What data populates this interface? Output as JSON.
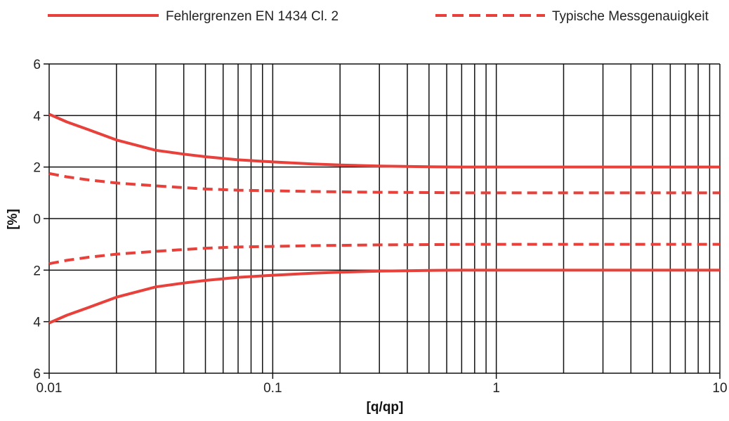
{
  "chart_data": {
    "type": "line",
    "x_scale": "log",
    "xlim": [
      0.01,
      10
    ],
    "ylim": [
      -6,
      6
    ],
    "xlabel": "[q/qp]",
    "ylabel": "[%]",
    "x_ticks": [
      0.01,
      0.1,
      1,
      10
    ],
    "x_tick_labels": [
      "0.01",
      "0.1",
      "1",
      "10"
    ],
    "y_ticks": [
      6,
      4,
      2,
      0,
      -2,
      -4,
      -6
    ],
    "y_tick_labels": [
      "6",
      "4",
      "2",
      "0",
      "2",
      "4",
      "6"
    ],
    "grid": true,
    "legend_position": "top",
    "line_color": "#e8403a",
    "legend": [
      {
        "label": "Fehlergrenzen EN 1434 Cl. 2",
        "style": "solid"
      },
      {
        "label": "Typische Messgenauigkeit",
        "style": "dashed"
      }
    ],
    "x": [
      0.01,
      0.012,
      0.015,
      0.02,
      0.03,
      0.04,
      0.05,
      0.07,
      0.1,
      0.15,
      0.2,
      0.3,
      0.5,
      0.7,
      1,
      2,
      5,
      10
    ],
    "series": [
      {
        "legend_index": 0,
        "style": "solid",
        "values": [
          4.05,
          3.75,
          3.45,
          3.05,
          2.65,
          2.5,
          2.4,
          2.28,
          2.2,
          2.12,
          2.08,
          2.04,
          2.01,
          2.0,
          2.0,
          2.0,
          2.0,
          2.0
        ]
      },
      {
        "legend_index": 0,
        "style": "solid",
        "values": [
          -4.05,
          -3.75,
          -3.45,
          -3.05,
          -2.65,
          -2.5,
          -2.4,
          -2.28,
          -2.2,
          -2.12,
          -2.08,
          -2.04,
          -2.01,
          -2.0,
          -2.0,
          -2.0,
          -2.0,
          -2.0
        ]
      },
      {
        "legend_index": 1,
        "style": "dashed",
        "values": [
          1.75,
          1.62,
          1.5,
          1.38,
          1.27,
          1.2,
          1.15,
          1.1,
          1.08,
          1.05,
          1.04,
          1.02,
          1.01,
          1.0,
          1.0,
          1.0,
          1.0,
          1.0
        ]
      },
      {
        "legend_index": 1,
        "style": "dashed",
        "values": [
          -1.75,
          -1.62,
          -1.5,
          -1.38,
          -1.27,
          -1.2,
          -1.15,
          -1.1,
          -1.08,
          -1.05,
          -1.04,
          -1.02,
          -1.01,
          -1.0,
          -1.0,
          -1.0,
          -1.0,
          -1.0
        ]
      }
    ]
  }
}
